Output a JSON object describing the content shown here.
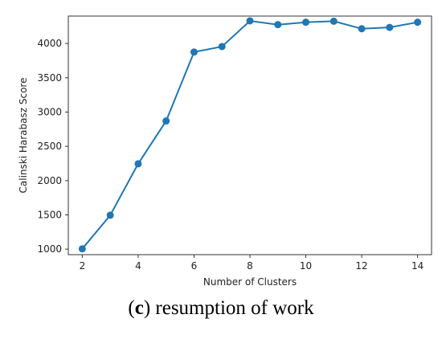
{
  "chart_data": {
    "type": "line",
    "title": "",
    "xlabel": "Number of Clusters",
    "ylabel": "Calinski Harabasz Score",
    "x": [
      2,
      3,
      4,
      5,
      6,
      7,
      8,
      9,
      10,
      11,
      12,
      13,
      14
    ],
    "series": [
      {
        "values": [
          1005,
          1495,
          2245,
          2870,
          3875,
          3955,
          4330,
          4275,
          4310,
          4325,
          4215,
          4235,
          4310
        ]
      }
    ],
    "xlim": [
      1.5,
      14.5
    ],
    "ylim": [
      920,
      4400
    ],
    "xticks": [
      2,
      4,
      6,
      8,
      10,
      12,
      14
    ],
    "yticks": [
      1000,
      1500,
      2000,
      2500,
      3000,
      3500,
      4000
    ],
    "grid": false,
    "legend": "none",
    "colors": {
      "line": "#1f77b4",
      "marker": "#1f77b4",
      "axes": "#333333"
    }
  },
  "caption": {
    "label_open": "(",
    "label_letter": "c",
    "label_close": ")",
    "text": " resumption of work"
  }
}
